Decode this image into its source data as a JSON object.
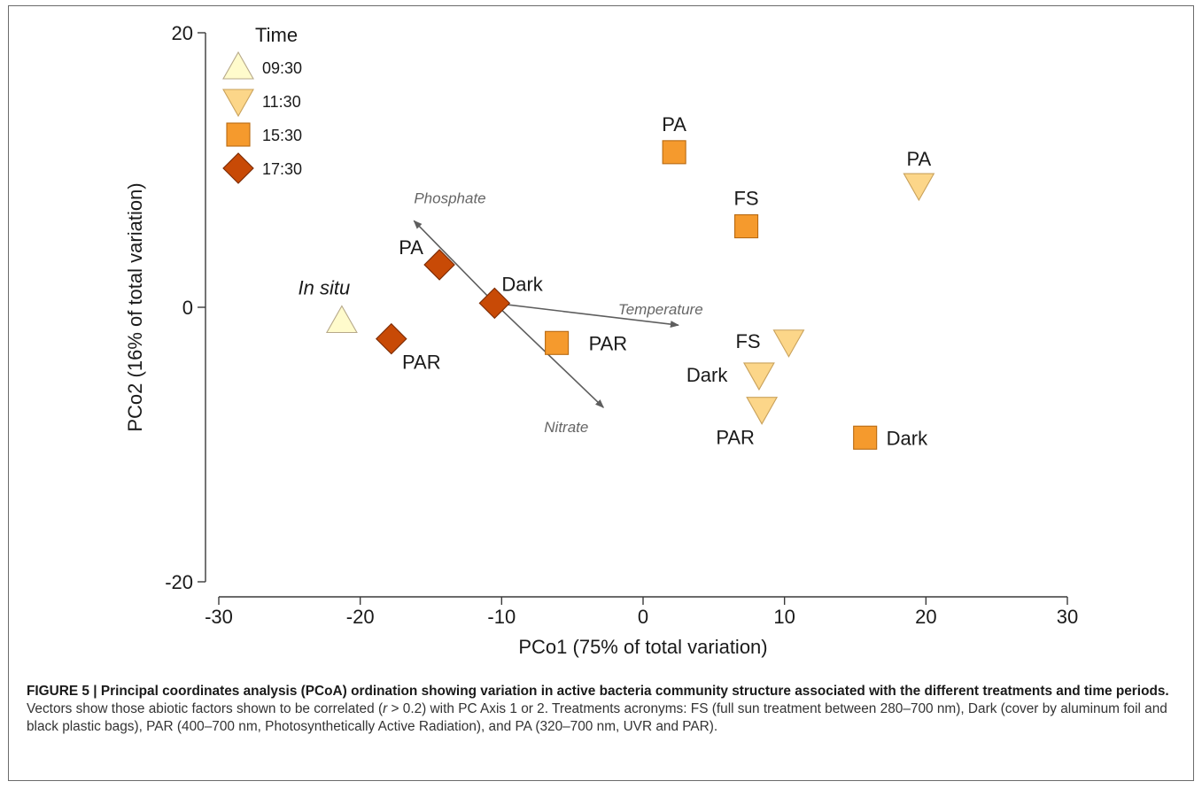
{
  "chart_data": {
    "type": "scatter",
    "xlabel": "PCo1 (75% of total variation)",
    "ylabel": "PCo2 (16% of total variation)",
    "xlim": [
      -30,
      30
    ],
    "ylim": [
      -20,
      20
    ],
    "xticks": [
      "-30",
      "-20",
      "-10",
      "0",
      "10",
      "20",
      "30"
    ],
    "yticks": [
      "20",
      "0",
      "-20"
    ],
    "grid": false,
    "legend": {
      "title": "Time",
      "placement": "top-left",
      "entries": [
        {
          "label": "09:30",
          "marker": "triangle-up",
          "color": "#FFFBCC"
        },
        {
          "label": "11:30",
          "marker": "triangle-down",
          "color": "#FCD689"
        },
        {
          "label": "15:30",
          "marker": "square",
          "color": "#F59A2D"
        },
        {
          "label": "17:30",
          "marker": "diamond",
          "color": "#C84A06"
        }
      ]
    },
    "series": [
      {
        "name": "09:30",
        "points": [
          {
            "x": -21.3,
            "y": -1.0,
            "label": "In situ"
          }
        ]
      },
      {
        "name": "11:30",
        "points": [
          {
            "x": 19.5,
            "y": 8.9,
            "label": "PA"
          },
          {
            "x": 10.3,
            "y": -2.5,
            "label": "FS"
          },
          {
            "x": 8.2,
            "y": -4.9,
            "label": "Dark"
          },
          {
            "x": 8.4,
            "y": -7.4,
            "label": "PAR"
          }
        ]
      },
      {
        "name": "15:30",
        "points": [
          {
            "x": 2.2,
            "y": 11.3,
            "label": "PA"
          },
          {
            "x": 7.3,
            "y": 5.9,
            "label": "FS"
          },
          {
            "x": -6.1,
            "y": -2.6,
            "label": "PAR"
          },
          {
            "x": 15.7,
            "y": -9.5,
            "label": "Dark"
          }
        ]
      },
      {
        "name": "17:30",
        "points": [
          {
            "x": -14.4,
            "y": 3.1,
            "label": "PA"
          },
          {
            "x": -10.5,
            "y": 0.3,
            "label": "Dark"
          },
          {
            "x": -17.8,
            "y": -2.3,
            "label": "PAR"
          }
        ]
      }
    ],
    "vectors": [
      {
        "label": "Phosphate",
        "from": [
          -10.5,
          0.3
        ],
        "to": [
          -16.2,
          6.3
        ]
      },
      {
        "label": "Temperature",
        "from": [
          -10.5,
          0.3
        ],
        "to": [
          2.5,
          -1.3
        ]
      },
      {
        "label": "Nitrate",
        "from": [
          -10.5,
          0.3
        ],
        "to": [
          -2.8,
          -7.3
        ]
      }
    ]
  },
  "caption": {
    "title": "FIGURE 5 | Principal coordinates analysis (PCoA) ordination showing variation in active bacteria community structure associated with the different treatments and time periods.",
    "body_before_r": " Vectors show those abiotic factors shown to be correlated (",
    "r_symbol": "r",
    "body_after_r": " > 0.2) with PC Axis 1 or 2. Treatments acronyms: FS (full sun treatment between 280–700 nm), Dark (cover by aluminum foil and black plastic bags), PAR (400–700 nm, Photosynthetically Active Radiation), and PA (320–700 nm, UVR and PAR)."
  }
}
